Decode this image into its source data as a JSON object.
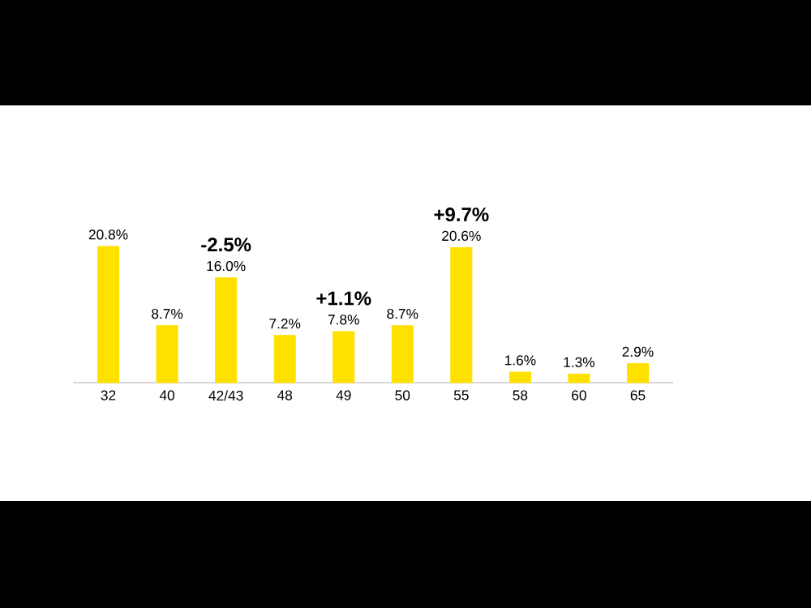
{
  "chart_data": {
    "type": "bar",
    "categories": [
      "32",
      "40",
      "42/43",
      "48",
      "49",
      "50",
      "55",
      "58",
      "60",
      "65"
    ],
    "values": [
      20.8,
      8.7,
      16.0,
      7.2,
      7.8,
      8.7,
      20.6,
      1.6,
      1.3,
      2.9
    ],
    "value_labels": [
      "20.8%",
      "8.7%",
      "16.0%",
      "7.2%",
      "7.8%",
      "8.7%",
      "20.6%",
      "1.6%",
      "1.3%",
      "2.9%"
    ],
    "color": "#ffe100",
    "annotations": [
      {
        "text": "-2.5%",
        "x": "42/43",
        "y": 16.0
      },
      {
        "text": "+1.1%",
        "x": "49",
        "y": 7.8
      },
      {
        "text": "+9.7%",
        "x": "55",
        "y": 20.6
      }
    ]
  }
}
